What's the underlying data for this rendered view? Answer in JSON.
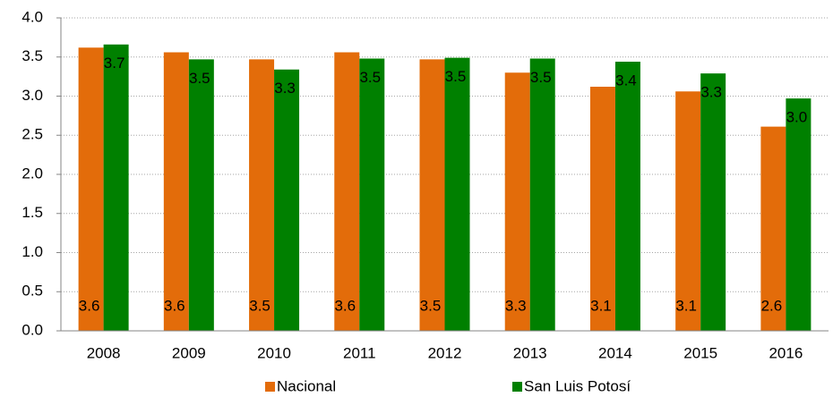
{
  "chart_data": {
    "type": "bar",
    "categories": [
      "2008",
      "2009",
      "2010",
      "2011",
      "2012",
      "2013",
      "2014",
      "2015",
      "2016"
    ],
    "series": [
      {
        "name": "Nacional",
        "color": "#e36c0a",
        "values": [
          3.62,
          3.56,
          3.47,
          3.56,
          3.47,
          3.3,
          3.12,
          3.06,
          2.61
        ],
        "value_labels": [
          "3.6",
          "3.6",
          "3.5",
          "3.6",
          "3.5",
          "3.3",
          "3.1",
          "3.1",
          "2.6"
        ]
      },
      {
        "name": "San Luis Potosí",
        "color": "#008000",
        "values": [
          3.66,
          3.47,
          3.34,
          3.48,
          3.49,
          3.48,
          3.44,
          3.29,
          2.97
        ],
        "value_labels": [
          "3.7",
          "3.5",
          "3.3",
          "3.5",
          "3.5",
          "3.5",
          "3.4",
          "3.3",
          "3.0"
        ]
      }
    ],
    "ylim": [
      0,
      4
    ],
    "yticks": [
      {
        "value": 0,
        "label": "0.0"
      },
      {
        "value": 0.5,
        "label": "0.5"
      },
      {
        "value": 1,
        "label": "1.0"
      },
      {
        "value": 1.5,
        "label": "1.5"
      },
      {
        "value": 2,
        "label": "2.0"
      },
      {
        "value": 2.5,
        "label": "2.5"
      },
      {
        "value": 3,
        "label": "3.0"
      },
      {
        "value": 3.5,
        "label": "3.5"
      },
      {
        "value": 4,
        "label": "4.0"
      }
    ],
    "grid": true,
    "legend": "bottom"
  }
}
